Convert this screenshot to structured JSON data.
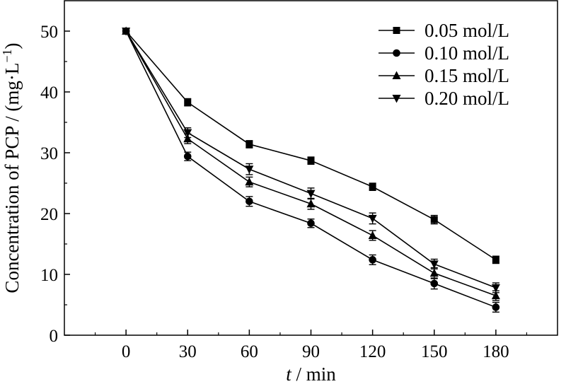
{
  "chart_data": {
    "type": "line",
    "title": "",
    "xlabel_italic": "t",
    "xlabel_rest": " / min",
    "ylabel_main": "Concentration of PCP / (mg·L",
    "ylabel_sup": "−1",
    "ylabel_close": ")",
    "x": [
      0,
      30,
      60,
      90,
      120,
      150,
      180
    ],
    "x_ticks": [
      "0",
      "30",
      "60",
      "90",
      "120",
      "150",
      "180"
    ],
    "y_ticks": [
      "0",
      "10",
      "20",
      "30",
      "40",
      "50"
    ],
    "xlim": [
      -30,
      210
    ],
    "ylim": [
      0,
      55
    ],
    "legend_position": "top-right",
    "series": [
      {
        "name": "0.05 mol/L",
        "marker": "square",
        "values": [
          50,
          38.3,
          31.4,
          28.7,
          24.4,
          19.0,
          12.4
        ],
        "errors": [
          0,
          0.6,
          0.6,
          0.6,
          0.6,
          0.7,
          0.6
        ]
      },
      {
        "name": "0.10 mol/L",
        "marker": "circle",
        "values": [
          50,
          29.4,
          22.0,
          18.4,
          12.4,
          8.5,
          4.6
        ],
        "errors": [
          0,
          0.7,
          0.8,
          0.7,
          0.8,
          0.9,
          0.8
        ]
      },
      {
        "name": "0.15 mol/L",
        "marker": "triangle-up",
        "values": [
          50,
          32.3,
          25.2,
          21.6,
          16.4,
          10.2,
          6.5
        ],
        "errors": [
          0,
          0.8,
          0.8,
          0.9,
          0.8,
          0.9,
          0.8
        ]
      },
      {
        "name": "0.20 mol/L",
        "marker": "triangle-down",
        "values": [
          50,
          33.3,
          27.3,
          23.3,
          19.2,
          11.7,
          7.8
        ],
        "errors": [
          0,
          0.8,
          0.9,
          0.9,
          0.9,
          0.8,
          0.8
        ]
      }
    ]
  }
}
